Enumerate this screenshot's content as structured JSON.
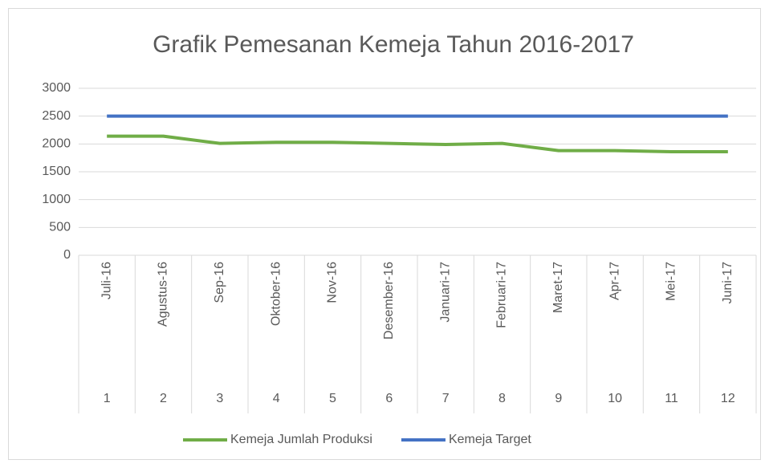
{
  "chart_data": {
    "type": "line",
    "title": "Grafik Pemesanan Kemeja Tahun 2016-2017",
    "categories": [
      "Juli-16",
      "Agustus-16",
      "Sep-16",
      "Oktober-16",
      "Nov-16",
      "Desember-16",
      "Januari-17",
      "Februari-17",
      "Maret-17",
      "Apr-17",
      "Mei-17",
      "Juni-17"
    ],
    "category_numbers": [
      "1",
      "2",
      "3",
      "4",
      "5",
      "6",
      "7",
      "8",
      "9",
      "10",
      "11",
      "12"
    ],
    "series": [
      {
        "name": "Kemeja Jumlah Produksi",
        "color": "#70ad47",
        "values": [
          2140,
          2140,
          2010,
          2030,
          2030,
          2010,
          1990,
          2010,
          1880,
          1880,
          1860,
          1860
        ]
      },
      {
        "name": "Kemeja Target",
        "color": "#4472c4",
        "values": [
          2500,
          2500,
          2500,
          2500,
          2500,
          2500,
          2500,
          2500,
          2500,
          2500,
          2500,
          2500
        ]
      }
    ],
    "ylim": [
      0,
      3000
    ],
    "yticks": [
      0,
      500,
      1000,
      1500,
      2000,
      2500,
      3000
    ],
    "grid": true,
    "legend": "bottom"
  }
}
